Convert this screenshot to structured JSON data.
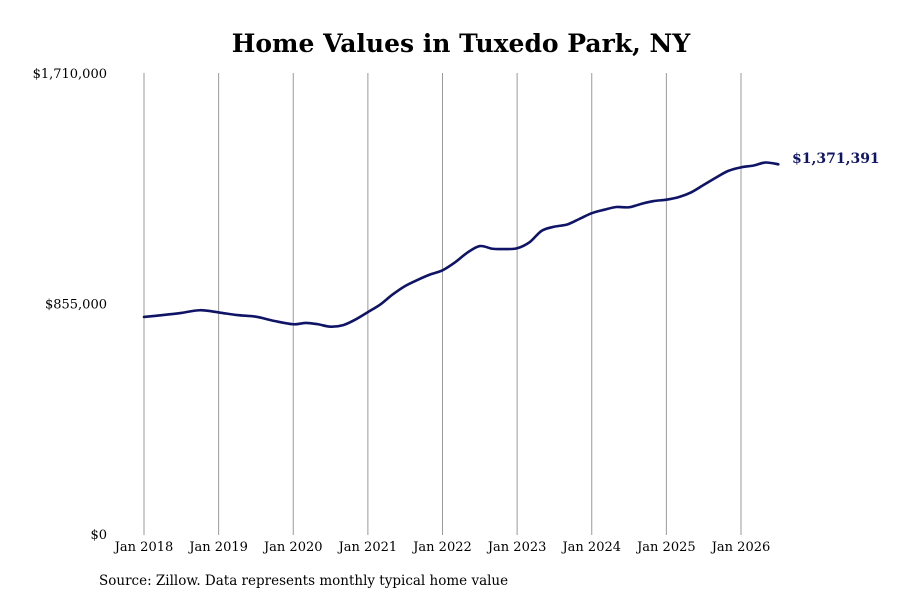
{
  "chart_data": {
    "type": "line",
    "title": "Home Values in Tuxedo Park, NY",
    "xlabel": "",
    "ylabel": "",
    "ylim": [
      0,
      1710000
    ],
    "yticks": [
      {
        "value": 0,
        "label": "$0"
      },
      {
        "value": 855000,
        "label": "$855,000"
      },
      {
        "value": 1710000,
        "label": "$1,710,000"
      }
    ],
    "xlim": [
      2018.0,
      2026.5
    ],
    "xticks": [
      {
        "value": 2018,
        "label": "Jan 2018"
      },
      {
        "value": 2019,
        "label": "Jan 2019"
      },
      {
        "value": 2020,
        "label": "Jan 2020"
      },
      {
        "value": 2021,
        "label": "Jan 2021"
      },
      {
        "value": 2022,
        "label": "Jan 2022"
      },
      {
        "value": 2023,
        "label": "Jan 2023"
      },
      {
        "value": 2024,
        "label": "Jan 2024"
      },
      {
        "value": 2025,
        "label": "Jan 2025"
      },
      {
        "value": 2026,
        "label": "Jan 2026"
      }
    ],
    "grid": {
      "vertical": true,
      "horizontal": false
    },
    "line_color": "#0f1466",
    "grid_color": "#9a9a9a",
    "end_label": "$1,371,391",
    "series": [
      {
        "points": [
          [
            2018.0,
            805000
          ],
          [
            2018.25,
            812000
          ],
          [
            2018.5,
            820000
          ],
          [
            2018.75,
            830000
          ],
          [
            2019.0,
            822000
          ],
          [
            2019.25,
            812000
          ],
          [
            2019.5,
            806000
          ],
          [
            2019.75,
            790000
          ],
          [
            2020.0,
            778000
          ],
          [
            2020.17,
            783000
          ],
          [
            2020.33,
            778000
          ],
          [
            2020.5,
            769000
          ],
          [
            2020.67,
            775000
          ],
          [
            2020.83,
            795000
          ],
          [
            2021.0,
            823000
          ],
          [
            2021.17,
            852000
          ],
          [
            2021.33,
            888000
          ],
          [
            2021.5,
            920000
          ],
          [
            2021.67,
            943000
          ],
          [
            2021.83,
            962000
          ],
          [
            2022.0,
            978000
          ],
          [
            2022.17,
            1008000
          ],
          [
            2022.33,
            1043000
          ],
          [
            2022.5,
            1068000
          ],
          [
            2022.67,
            1058000
          ],
          [
            2022.83,
            1057000
          ],
          [
            2023.0,
            1060000
          ],
          [
            2023.17,
            1083000
          ],
          [
            2023.33,
            1125000
          ],
          [
            2023.5,
            1140000
          ],
          [
            2023.67,
            1148000
          ],
          [
            2023.83,
            1168000
          ],
          [
            2024.0,
            1190000
          ],
          [
            2024.17,
            1203000
          ],
          [
            2024.33,
            1213000
          ],
          [
            2024.5,
            1212000
          ],
          [
            2024.67,
            1225000
          ],
          [
            2024.83,
            1235000
          ],
          [
            2025.0,
            1240000
          ],
          [
            2025.17,
            1250000
          ],
          [
            2025.33,
            1267000
          ],
          [
            2025.5,
            1295000
          ],
          [
            2025.67,
            1323000
          ],
          [
            2025.83,
            1347000
          ],
          [
            2026.0,
            1360000
          ],
          [
            2026.17,
            1367000
          ],
          [
            2026.33,
            1378000
          ],
          [
            2026.5,
            1371391
          ]
        ]
      }
    ]
  },
  "source_note": "Source: Zillow. Data represents monthly typical home value"
}
